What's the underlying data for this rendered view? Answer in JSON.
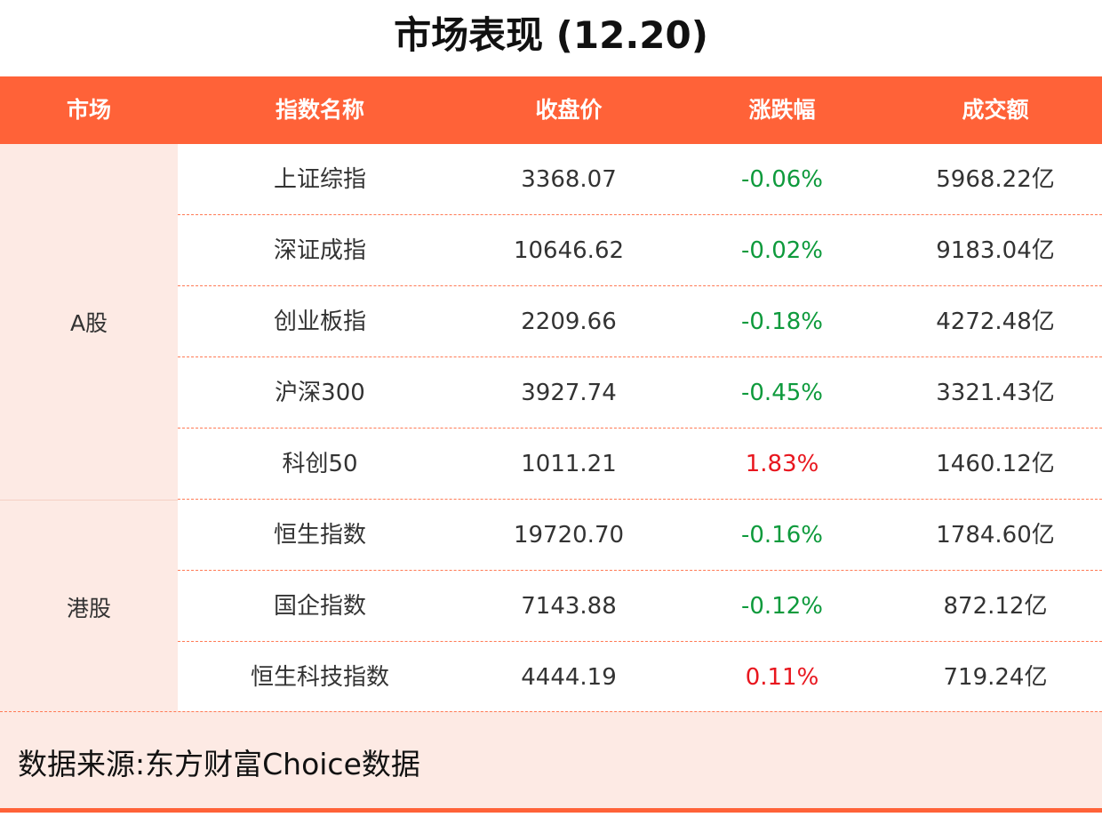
{
  "title": "市场表现 (12.20)",
  "headers": [
    "市场",
    "指数名称",
    "收盘价",
    "涨跌幅",
    "成交额"
  ],
  "colors": {
    "header_bg": "#FF6238",
    "market_bg": "#FDEAE4",
    "up": "#E8161E",
    "down": "#0E9A3C"
  },
  "markets": [
    {
      "name": "A股",
      "rows": [
        {
          "index": "上证综指",
          "close": "3368.07",
          "change": "-0.06%",
          "dir": "down",
          "volume": "5968.22亿"
        },
        {
          "index": "深证成指",
          "close": "10646.62",
          "change": "-0.02%",
          "dir": "down",
          "volume": "9183.04亿"
        },
        {
          "index": "创业板指",
          "close": "2209.66",
          "change": "-0.18%",
          "dir": "down",
          "volume": "4272.48亿"
        },
        {
          "index": "沪深300",
          "close": "3927.74",
          "change": "-0.45%",
          "dir": "down",
          "volume": "3321.43亿"
        },
        {
          "index": "科创50",
          "close": "1011.21",
          "change": "1.83%",
          "dir": "up",
          "volume": "1460.12亿"
        }
      ]
    },
    {
      "name": "港股",
      "rows": [
        {
          "index": "恒生指数",
          "close": "19720.70",
          "change": "-0.16%",
          "dir": "down",
          "volume": "1784.60亿"
        },
        {
          "index": "国企指数",
          "close": "7143.88",
          "change": "-0.12%",
          "dir": "down",
          "volume": "872.12亿"
        },
        {
          "index": "恒生科技指数",
          "close": "4444.19",
          "change": "0.11%",
          "dir": "up",
          "volume": "719.24亿"
        }
      ]
    }
  ],
  "footer": "数据来源:东方财富Choice数据"
}
